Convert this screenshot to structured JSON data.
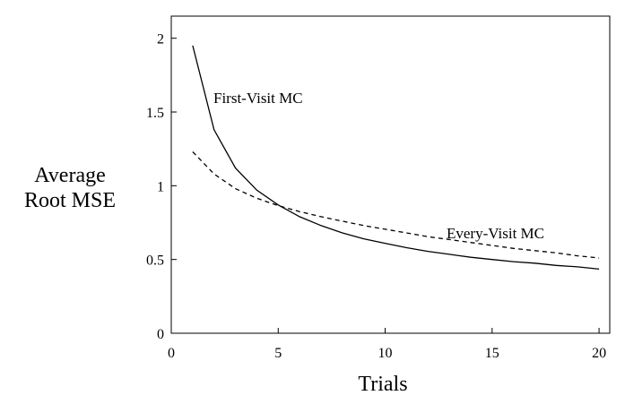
{
  "chart_data": {
    "type": "line",
    "xlabel": "Trials",
    "ylabel": [
      "Average",
      "Root MSE"
    ],
    "xlim": [
      0,
      20.5
    ],
    "ylim": [
      0,
      2.15
    ],
    "xticks": [
      0,
      5,
      10,
      15,
      20
    ],
    "yticks": [
      0,
      0.5,
      1,
      1.5,
      2
    ],
    "xtick_labels": [
      "0",
      "5",
      "10",
      "15",
      "20"
    ],
    "ytick_labels": [
      "0",
      "0.5",
      "1",
      "1.5",
      "2"
    ],
    "grid": false,
    "legend": "none",
    "series": [
      {
        "name": "First-Visit MC",
        "style": "solid",
        "x": [
          1,
          2,
          3,
          4,
          5,
          6,
          7,
          8,
          9,
          10,
          11,
          12,
          13,
          14,
          15,
          16,
          17,
          18,
          19,
          20
        ],
        "y": [
          1.95,
          1.38,
          1.12,
          0.97,
          0.87,
          0.79,
          0.73,
          0.68,
          0.64,
          0.61,
          0.58,
          0.555,
          0.535,
          0.515,
          0.5,
          0.485,
          0.475,
          0.46,
          0.45,
          0.435
        ]
      },
      {
        "name": "Every-Visit MC",
        "style": "dashed",
        "x": [
          1,
          2,
          3,
          4,
          5,
          6,
          7,
          8,
          9,
          10,
          11,
          12,
          13,
          14,
          15,
          16,
          17,
          18,
          19,
          20
        ],
        "y": [
          1.23,
          1.08,
          0.98,
          0.915,
          0.865,
          0.825,
          0.79,
          0.76,
          0.73,
          0.705,
          0.68,
          0.655,
          0.635,
          0.615,
          0.595,
          0.575,
          0.56,
          0.545,
          0.525,
          0.51
        ]
      }
    ],
    "annotations": [
      "First-Visit MC",
      "Every-Visit MC"
    ]
  }
}
